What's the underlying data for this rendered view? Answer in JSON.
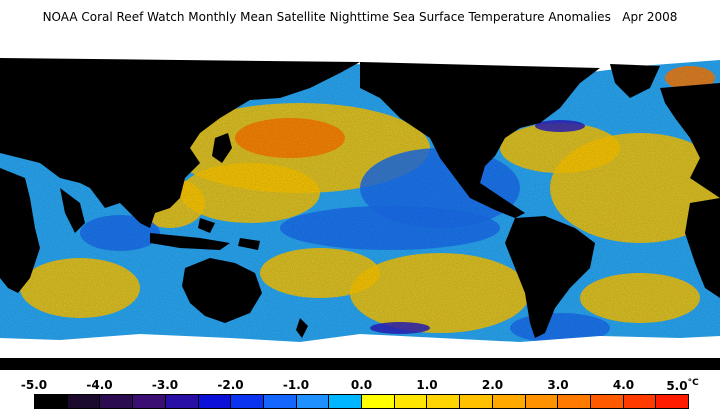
{
  "title": "NOAA Coral Reef Watch Monthly Mean Satellite Nighttime Sea Surface Temperature Anomalies",
  "date": "Apr 2008",
  "colorbar": {
    "ticks": [
      "-5.0",
      "-4.0",
      "-3.0",
      "-2.0",
      "-1.0",
      "0.0",
      "1.0",
      "2.0",
      "3.0",
      "4.0",
      "5.0"
    ],
    "unit": "°C",
    "colors": [
      "#000000",
      "#1c0a2e",
      "#2b0c50",
      "#3a0e72",
      "#2a0fa6",
      "#0c10d9",
      "#0a34f0",
      "#1565ff",
      "#1e90ff",
      "#00b7ff",
      "#ffff00",
      "#ffe600",
      "#ffd400",
      "#ffc000",
      "#ffa800",
      "#ff9200",
      "#ff7a00",
      "#ff5a00",
      "#ff3b00",
      "#ff1c00"
    ]
  },
  "map_colors": {
    "land": "#000000",
    "ice": "#ffffff",
    "ocean_base": "#2aa8f5",
    "cool": "#1a6ef0",
    "very_cool": "#2b20c0",
    "warm": "#ffc800",
    "hot": "#ff7a00"
  }
}
